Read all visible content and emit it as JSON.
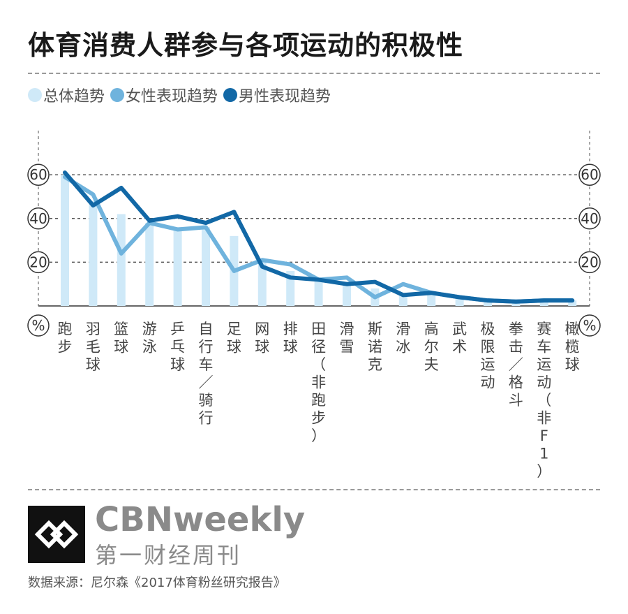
{
  "header": {
    "title": "体育消费人群参与各项运动的积极性"
  },
  "legend": [
    {
      "label": "总体趋势",
      "color": "#cfe9f8"
    },
    {
      "label": "女性表现趋势",
      "color": "#6fb3dd"
    },
    {
      "label": "男性表现趋势",
      "color": "#1268a6"
    }
  ],
  "footer": {
    "brand": "CBNweekly",
    "brand_cn": "第一财经周刊",
    "source": "数据来源：尼尔森《2017体育粉丝研究报告》"
  },
  "chart_data": {
    "type": "bar",
    "categories": [
      "跑步",
      "羽毛球",
      "篮球",
      "游泳",
      "乒乓球",
      "自行车／骑行",
      "足球",
      "网球",
      "排球",
      "田径（非跑步）",
      "滑雪",
      "斯诺克",
      "滑冰",
      "高尔夫",
      "武术",
      "极限运动",
      "拳击／格斗",
      "赛车运动（非F1）",
      "橄榄球"
    ],
    "series": [
      {
        "name": "总体趋势",
        "type": "bar",
        "values": [
          60,
          48,
          42,
          38,
          36,
          36,
          32,
          20,
          16,
          12,
          10,
          8,
          6,
          5,
          4,
          3,
          2.5,
          2.5,
          2.5
        ]
      },
      {
        "name": "女性表现趋势",
        "type": "line",
        "values": [
          59,
          51,
          24,
          38,
          35,
          36,
          16,
          21,
          19,
          12,
          13,
          4,
          10,
          6,
          4,
          2.5,
          2,
          2.5,
          2.5
        ]
      },
      {
        "name": "男性表现趋势",
        "type": "line",
        "values": [
          61,
          46,
          54,
          39,
          41,
          38,
          43,
          18,
          13,
          12,
          10,
          11,
          5,
          6,
          4,
          2.5,
          2,
          2.5,
          2.5
        ]
      }
    ],
    "yticks": [
      "20",
      "40",
      "60"
    ],
    "ylim": [
      0,
      70
    ],
    "unit_label": "%",
    "grid": true,
    "legend_position": "top-left"
  }
}
